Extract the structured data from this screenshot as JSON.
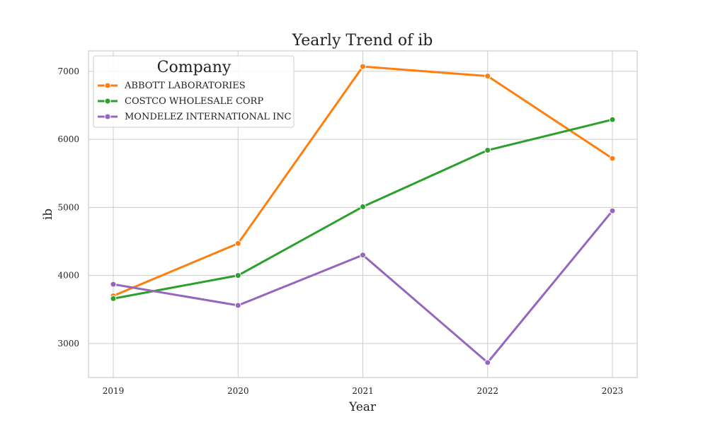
{
  "chart_data": {
    "type": "line",
    "title": "Yearly Trend of ib",
    "xlabel": "Year",
    "ylabel": "ib",
    "x": [
      "2019",
      "2020",
      "2021",
      "2022",
      "2023"
    ],
    "yticks": [
      3000,
      4000,
      5000,
      6000,
      7000
    ],
    "ylim": [
      2500,
      7300
    ],
    "grid": true,
    "legend": {
      "title": "Company",
      "placement": "top-left"
    },
    "series": [
      {
        "name": "ABBOTT LABORATORIES",
        "color": "#ff7f0e",
        "values": [
          3700,
          4470,
          7070,
          6930,
          5720
        ]
      },
      {
        "name": "COSTCO WHOLESALE CORP",
        "color": "#2ca02c",
        "values": [
          3660,
          4000,
          5010,
          5840,
          6290
        ]
      },
      {
        "name": "MONDELEZ INTERNATIONAL INC",
        "color": "#9467bd",
        "values": [
          3870,
          3560,
          4300,
          2720,
          4950
        ]
      }
    ]
  }
}
